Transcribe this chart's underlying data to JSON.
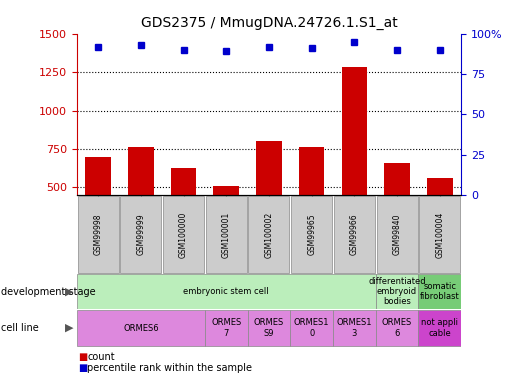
{
  "title": "GDS2375 / MmugDNA.24726.1.S1_at",
  "samples": [
    "GSM99998",
    "GSM99999",
    "GSM100000",
    "GSM100001",
    "GSM100002",
    "GSM99965",
    "GSM99966",
    "GSM99840",
    "GSM100004"
  ],
  "counts": [
    695,
    760,
    625,
    510,
    800,
    765,
    1285,
    660,
    560
  ],
  "percentile_ranks": [
    92,
    93,
    90,
    89,
    92,
    91,
    95,
    90,
    90
  ],
  "ylim_left": [
    450,
    1500
  ],
  "ylim_right": [
    0,
    100
  ],
  "yticks_left": [
    500,
    750,
    1000,
    1250,
    1500
  ],
  "yticks_right": [
    0,
    25,
    50,
    75,
    100
  ],
  "bar_color": "#cc0000",
  "dot_color": "#0000cc",
  "plot_bg": "#ffffff",
  "development_stage_labels": [
    {
      "text": "embryonic stem cell",
      "start": 0,
      "end": 7,
      "color": "#bbeebb"
    },
    {
      "text": "differentiated\nembryoid\nbodies",
      "start": 7,
      "end": 8,
      "color": "#bbeebb"
    },
    {
      "text": "somatic\nfibroblast",
      "start": 8,
      "end": 9,
      "color": "#77cc77"
    }
  ],
  "cell_line_labels": [
    {
      "text": "ORMES6",
      "start": 0,
      "end": 3,
      "color": "#dd88dd"
    },
    {
      "text": "ORMES\n7",
      "start": 3,
      "end": 4,
      "color": "#dd88dd"
    },
    {
      "text": "ORMES\nS9",
      "start": 4,
      "end": 5,
      "color": "#dd88dd"
    },
    {
      "text": "ORMES1\n0",
      "start": 5,
      "end": 6,
      "color": "#dd88dd"
    },
    {
      "text": "ORMES1\n3",
      "start": 6,
      "end": 7,
      "color": "#dd88dd"
    },
    {
      "text": "ORMES\n6",
      "start": 7,
      "end": 8,
      "color": "#dd88dd"
    },
    {
      "text": "not appli\ncable",
      "start": 8,
      "end": 9,
      "color": "#cc44cc"
    }
  ],
  "left_label_color": "#cc0000",
  "right_label_color": "#0000cc",
  "sample_box_color": "#cccccc",
  "sample_box_edge": "#888888"
}
